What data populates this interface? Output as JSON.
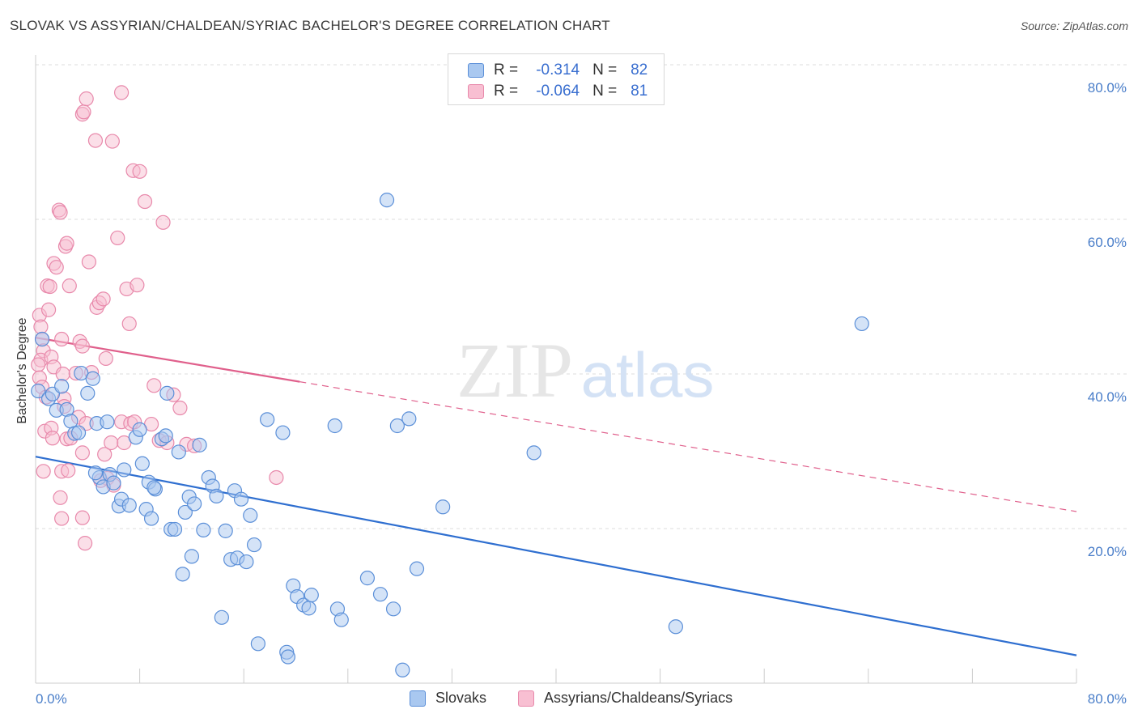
{
  "header": {
    "title": "SLOVAK VS ASSYRIAN/CHALDEAN/SYRIAC BACHELOR'S DEGREE CORRELATION CHART",
    "source": "Source: ZipAtlas.com"
  },
  "watermark": {
    "zip": "ZIP",
    "atlas": "atlas"
  },
  "legend_top": {
    "rows": [
      {
        "r_label": "R =",
        "r_value": "-0.314",
        "n_label": "N =",
        "n_value": "82"
      },
      {
        "r_label": "R =",
        "r_value": "-0.064",
        "n_label": "N =",
        "n_value": "81"
      }
    ]
  },
  "legend_bottom": {
    "items": [
      {
        "label": "Slovaks"
      },
      {
        "label": "Assyrians/Chaldeans/Syriacs"
      }
    ]
  },
  "colors": {
    "blue_fill": "#a9c8f0",
    "blue_stroke": "#5b8fd8",
    "blue_line": "#2f6fd0",
    "pink_fill": "#f8bfd2",
    "pink_stroke": "#e889ab",
    "pink_line": "#e0608c",
    "tick_text": "#4a7ec9",
    "grid": "#dddddd"
  },
  "chart_data": {
    "type": "scatter",
    "title": "SLOVAK VS ASSYRIAN/CHALDEAN/SYRIAC BACHELOR'S DEGREE CORRELATION CHART",
    "xlabel": "",
    "ylabel": "Bachelor's Degree",
    "xlim": [
      0,
      80
    ],
    "ylim": [
      0,
      80
    ],
    "x_tick_labels": [
      {
        "value": 0,
        "label": "0.0%"
      },
      {
        "value": 80,
        "label": "80.0%"
      }
    ],
    "y_tick_labels": [
      {
        "value": 20,
        "label": "20.0%"
      },
      {
        "value": 40,
        "label": "40.0%"
      },
      {
        "value": 60,
        "label": "60.0%"
      },
      {
        "value": 80,
        "label": "80.0%"
      }
    ],
    "series": [
      {
        "name": "Slovaks",
        "color": "#5b8fd8",
        "trend": {
          "x0": 0,
          "y0": 29.3,
          "x1": 80,
          "y1": 3.6,
          "style": "solid"
        },
        "points": [
          [
            0.5,
            44.5
          ],
          [
            0.2,
            37.8
          ],
          [
            1.0,
            36.8
          ],
          [
            1.3,
            37.4
          ],
          [
            2.0,
            38.4
          ],
          [
            1.6,
            35.3
          ],
          [
            2.4,
            35.4
          ],
          [
            2.7,
            33.9
          ],
          [
            3.0,
            32.3
          ],
          [
            3.3,
            32.4
          ],
          [
            3.5,
            40.1
          ],
          [
            4.0,
            37.5
          ],
          [
            4.4,
            39.4
          ],
          [
            4.7,
            33.6
          ],
          [
            5.5,
            33.8
          ],
          [
            4.9,
            26.6
          ],
          [
            5.2,
            25.4
          ],
          [
            5.7,
            27.0
          ],
          [
            6.0,
            25.9
          ],
          [
            6.4,
            22.9
          ],
          [
            6.6,
            23.8
          ],
          [
            6.8,
            27.6
          ],
          [
            7.2,
            23.0
          ],
          [
            7.7,
            31.8
          ],
          [
            8.0,
            32.8
          ],
          [
            8.2,
            28.4
          ],
          [
            8.5,
            22.5
          ],
          [
            8.7,
            26.0
          ],
          [
            8.9,
            21.3
          ],
          [
            9.2,
            25.1
          ],
          [
            9.7,
            31.6
          ],
          [
            10.0,
            32.0
          ],
          [
            10.1,
            37.5
          ],
          [
            10.4,
            19.9
          ],
          [
            10.7,
            19.9
          ],
          [
            11.0,
            29.9
          ],
          [
            11.3,
            14.1
          ],
          [
            11.5,
            22.1
          ],
          [
            11.8,
            24.1
          ],
          [
            12.0,
            16.4
          ],
          [
            12.2,
            23.2
          ],
          [
            12.6,
            30.8
          ],
          [
            12.9,
            19.8
          ],
          [
            13.3,
            26.6
          ],
          [
            13.6,
            25.5
          ],
          [
            13.9,
            24.2
          ],
          [
            14.3,
            8.5
          ],
          [
            14.6,
            19.7
          ],
          [
            15.0,
            16.0
          ],
          [
            15.3,
            24.9
          ],
          [
            15.5,
            16.2
          ],
          [
            15.8,
            23.8
          ],
          [
            16.2,
            15.7
          ],
          [
            16.5,
            21.7
          ],
          [
            16.8,
            17.9
          ],
          [
            17.1,
            5.1
          ],
          [
            17.8,
            34.1
          ],
          [
            19.0,
            32.4
          ],
          [
            19.3,
            4.0
          ],
          [
            19.4,
            3.4
          ],
          [
            19.8,
            12.6
          ],
          [
            20.1,
            11.2
          ],
          [
            20.6,
            10.1
          ],
          [
            21.0,
            9.7
          ],
          [
            21.2,
            11.4
          ],
          [
            23.0,
            33.3
          ],
          [
            23.2,
            9.6
          ],
          [
            23.5,
            8.2
          ],
          [
            25.5,
            13.6
          ],
          [
            26.5,
            11.5
          ],
          [
            27.0,
            62.5
          ],
          [
            27.5,
            9.6
          ],
          [
            27.8,
            33.3
          ],
          [
            28.2,
            1.7
          ],
          [
            28.7,
            34.2
          ],
          [
            29.3,
            14.8
          ],
          [
            31.3,
            22.8
          ],
          [
            38.3,
            29.8
          ],
          [
            49.2,
            7.3
          ],
          [
            63.5,
            46.5
          ],
          [
            4.6,
            27.2
          ],
          [
            9.1,
            25.3
          ]
        ]
      },
      {
        "name": "Assyrians/Chaldeans/Syriacs",
        "color": "#e889ab",
        "trend": {
          "x0": 0,
          "y0": 44.7,
          "x1": 80,
          "y1": 22.2,
          "style": "solid-then-dashed",
          "solid_until_x": 20.3
        },
        "points": [
          [
            0.3,
            47.6
          ],
          [
            0.4,
            46.1
          ],
          [
            0.5,
            44.5
          ],
          [
            0.6,
            43.0
          ],
          [
            0.4,
            41.8
          ],
          [
            0.2,
            41.2
          ],
          [
            0.3,
            39.5
          ],
          [
            0.5,
            38.3
          ],
          [
            0.8,
            37.0
          ],
          [
            0.7,
            32.6
          ],
          [
            0.6,
            27.4
          ],
          [
            0.9,
            51.4
          ],
          [
            1.0,
            48.3
          ],
          [
            1.1,
            51.3
          ],
          [
            1.2,
            42.2
          ],
          [
            1.4,
            40.9
          ],
          [
            1.2,
            33.0
          ],
          [
            1.3,
            31.7
          ],
          [
            1.4,
            54.3
          ],
          [
            1.6,
            53.8
          ],
          [
            1.8,
            61.2
          ],
          [
            1.9,
            60.9
          ],
          [
            2.0,
            44.5
          ],
          [
            2.1,
            40.0
          ],
          [
            2.2,
            36.8
          ],
          [
            2.4,
            31.6
          ],
          [
            2.0,
            27.4
          ],
          [
            1.9,
            24.0
          ],
          [
            2.0,
            21.3
          ],
          [
            2.2,
            35.8
          ],
          [
            2.3,
            56.5
          ],
          [
            2.4,
            56.9
          ],
          [
            2.6,
            51.4
          ],
          [
            2.5,
            27.5
          ],
          [
            2.7,
            31.7
          ],
          [
            3.1,
            40.1
          ],
          [
            3.4,
            44.2
          ],
          [
            3.6,
            73.6
          ],
          [
            3.7,
            73.9
          ],
          [
            3.6,
            43.6
          ],
          [
            3.3,
            34.4
          ],
          [
            3.6,
            21.4
          ],
          [
            3.8,
            18.1
          ],
          [
            3.9,
            75.6
          ],
          [
            4.1,
            54.5
          ],
          [
            4.3,
            40.2
          ],
          [
            3.9,
            33.6
          ],
          [
            3.6,
            29.8
          ],
          [
            4.6,
            70.2
          ],
          [
            4.7,
            48.6
          ],
          [
            4.9,
            49.2
          ],
          [
            5.2,
            49.7
          ],
          [
            5.4,
            42.0
          ],
          [
            5.3,
            29.6
          ],
          [
            5.5,
            26.5
          ],
          [
            5.9,
            70.1
          ],
          [
            5.8,
            31.1
          ],
          [
            6.0,
            25.6
          ],
          [
            6.3,
            57.6
          ],
          [
            6.6,
            76.4
          ],
          [
            6.6,
            33.8
          ],
          [
            6.8,
            31.1
          ],
          [
            7.0,
            51.0
          ],
          [
            7.2,
            46.5
          ],
          [
            7.3,
            33.6
          ],
          [
            7.5,
            66.3
          ],
          [
            7.6,
            33.8
          ],
          [
            7.8,
            51.5
          ],
          [
            8.0,
            66.2
          ],
          [
            8.4,
            62.3
          ],
          [
            8.9,
            33.5
          ],
          [
            9.1,
            38.5
          ],
          [
            9.5,
            31.4
          ],
          [
            9.8,
            59.6
          ],
          [
            10.1,
            31.1
          ],
          [
            10.6,
            37.3
          ],
          [
            11.1,
            35.6
          ],
          [
            11.6,
            30.9
          ],
          [
            12.2,
            30.7
          ],
          [
            18.5,
            26.6
          ],
          [
            5.0,
            26.2
          ]
        ]
      }
    ]
  }
}
